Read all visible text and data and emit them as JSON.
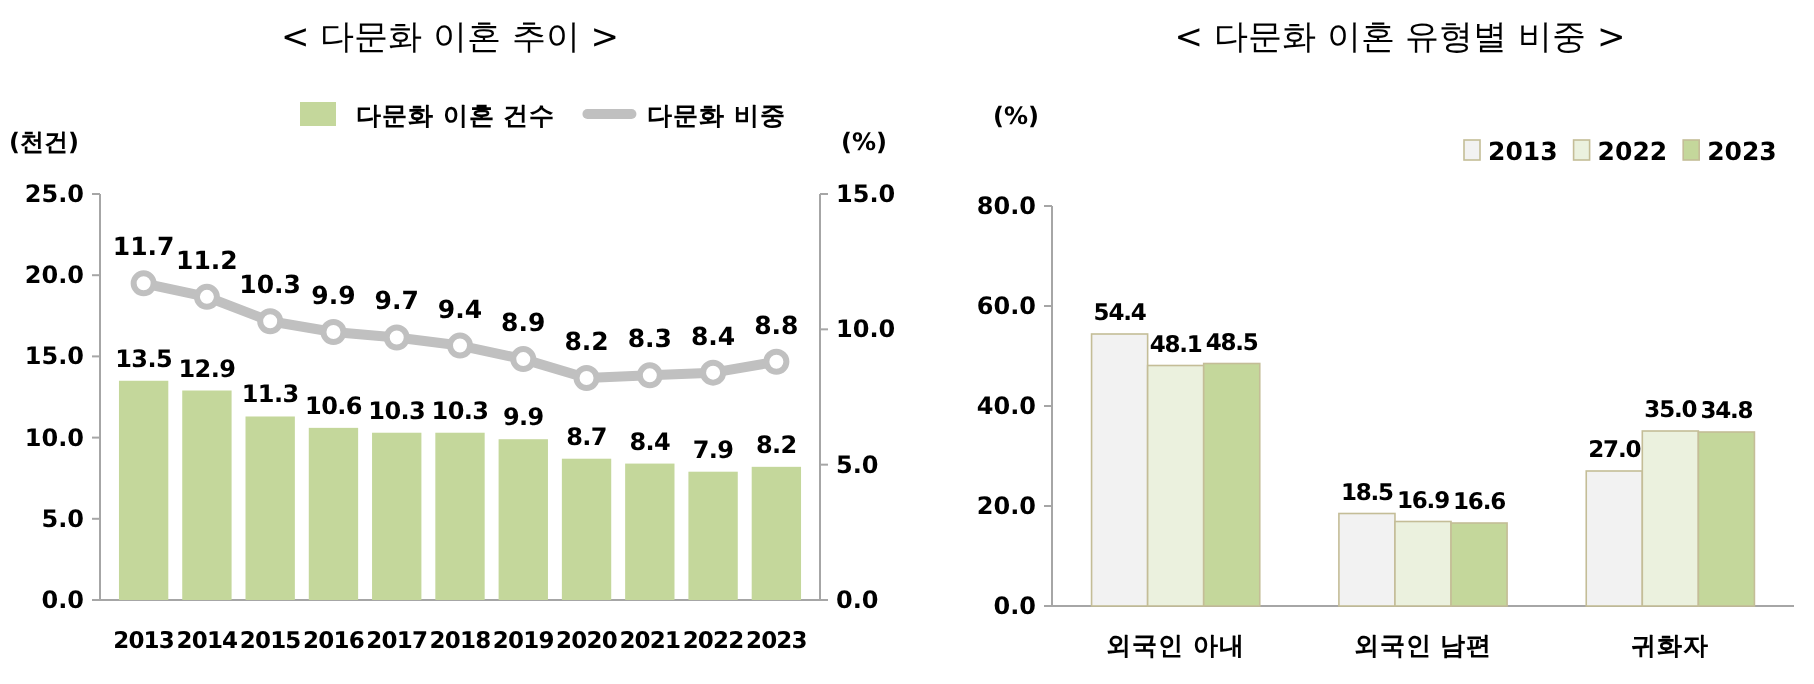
{
  "chart_data": [
    {
      "type": "bar",
      "title": "< 다문화 이혼 추이 >",
      "ylabel": "(천건)",
      "y2label": "(%)",
      "categories": [
        "2013",
        "2014",
        "2015",
        "2016",
        "2017",
        "2018",
        "2019",
        "2020",
        "2021",
        "2022",
        "2023"
      ],
      "series": [
        {
          "name": "다문화 이혼 건수",
          "color": "#c4d79b",
          "values": [
            13.5,
            12.9,
            11.3,
            10.6,
            10.3,
            10.3,
            9.9,
            8.7,
            8.4,
            7.9,
            8.2
          ],
          "value_labels": [
            "13.5",
            "12.9",
            "11.3",
            "10.6",
            "10.3",
            "10.3",
            "9.9",
            "8.7",
            "8.4",
            "7.9",
            "8.2"
          ]
        },
        {
          "name": "다문화 비중",
          "type": "line",
          "axis": "y2",
          "color": "#c0c0c0",
          "values": [
            11.7,
            11.2,
            10.3,
            9.9,
            9.7,
            9.4,
            8.9,
            8.2,
            8.3,
            8.4,
            8.8
          ],
          "value_labels": [
            "11.7",
            "11.2",
            "10.3",
            "9.9",
            "9.7",
            "9.4",
            "8.9",
            "8.2",
            "8.3",
            "8.4",
            "8.8"
          ]
        }
      ],
      "ylim": [
        0,
        25
      ],
      "yticks": [
        {
          "value": 0,
          "label": "0.0"
        },
        {
          "value": 5,
          "label": "5.0"
        },
        {
          "value": 10,
          "label": "10.0"
        },
        {
          "value": 15,
          "label": "15.0"
        },
        {
          "value": 20,
          "label": "20.0"
        },
        {
          "value": 25,
          "label": "25.0"
        }
      ],
      "y2lim": [
        0,
        15
      ],
      "y2ticks": [
        {
          "value": 0,
          "label": "0.0"
        },
        {
          "value": 5,
          "label": "5.0"
        },
        {
          "value": 10,
          "label": "10.0"
        },
        {
          "value": 15,
          "label": "15.0"
        }
      ],
      "marker": "circle",
      "legend": "top",
      "grid": false
    },
    {
      "type": "bar",
      "title": "< 다문화 이혼 유형별 비중 >",
      "ylabel": "(%)",
      "categories": [
        "외국인 아내",
        "외국인 남편",
        "귀화자"
      ],
      "series": [
        {
          "name": "2013",
          "color": "#f2f2f2",
          "values": [
            54.4,
            18.5,
            27.0
          ],
          "value_labels": [
            "54.4",
            "18.5",
            "27.0"
          ]
        },
        {
          "name": "2022",
          "color": "#ebf1de",
          "values": [
            48.1,
            16.9,
            35.0
          ],
          "value_labels": [
            "48.1",
            "16.9",
            "35.0"
          ]
        },
        {
          "name": "2023",
          "color": "#c4d79b",
          "values": [
            48.5,
            16.6,
            34.8
          ],
          "value_labels": [
            "48.5",
            "16.6",
            "34.8"
          ]
        }
      ],
      "ylim": [
        0,
        80
      ],
      "yticks": [
        {
          "value": 0,
          "label": "0.0"
        },
        {
          "value": 20,
          "label": "20.0"
        },
        {
          "value": 40,
          "label": "40.0"
        },
        {
          "value": 60,
          "label": "60.0"
        },
        {
          "value": 80,
          "label": "80.0"
        }
      ],
      "legend": "top right",
      "grid": false
    }
  ]
}
